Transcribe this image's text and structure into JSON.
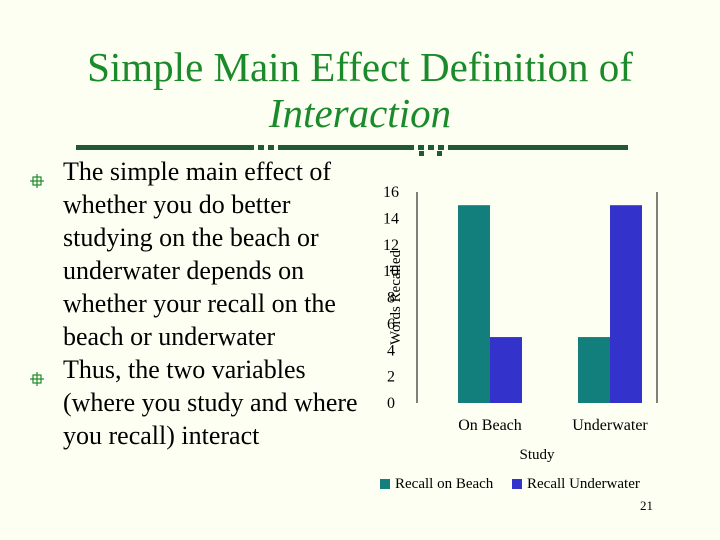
{
  "slide": {
    "title_line1": "Simple Main Effect Definition of",
    "title_line2": "Interaction",
    "bullets": [
      "The simple main effect of whether you do better studying on the beach or underwater depends on whether your recall on the beach or underwater",
      "Thus, the two variables (where you study and where you recall) interact"
    ],
    "page_number": "21",
    "colors": {
      "title": "#1b8a2a",
      "background": "#fdfff3",
      "rule": "#1f5a35",
      "bullet_icon": "#1b8a2a"
    }
  },
  "chart_data": {
    "type": "bar",
    "categories": [
      "On Beach",
      "Underwater"
    ],
    "series": [
      {
        "name": "Recall on Beach",
        "values": [
          15,
          5
        ],
        "color": "#127f7c"
      },
      {
        "name": "Recall Underwater",
        "values": [
          5,
          15
        ],
        "color": "#3333cc"
      }
    ],
    "xlabel": "Study",
    "ylabel": "Words Recalled",
    "ylim": [
      0,
      16
    ],
    "yticks": [
      "0",
      "2",
      "4",
      "6",
      "8",
      "10",
      "12",
      "14",
      "16"
    ],
    "grid": false,
    "legend_position": "bottom"
  }
}
